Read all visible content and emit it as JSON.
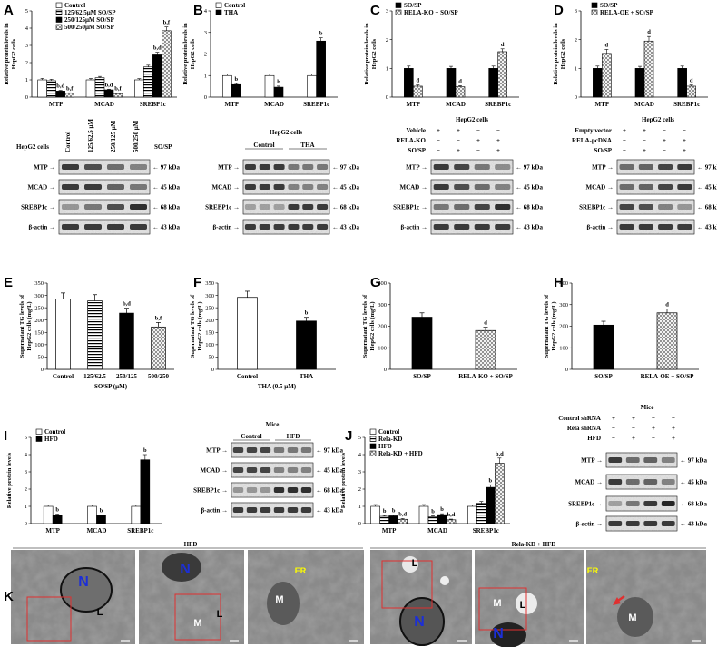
{
  "panel_letters": [
    "A",
    "B",
    "C",
    "D",
    "E",
    "F",
    "G",
    "H",
    "I",
    "J",
    "K"
  ],
  "blot_kda": {
    "mtp": "97 kDa",
    "mcad": "45 kDa",
    "srebp": "68 kDa",
    "actin": "43 kDa"
  },
  "blot_proteins": {
    "mtp": "MTP",
    "mcad": "MCAD",
    "srebp": "SREBP1c",
    "actin": "β-actin"
  },
  "blots": {
    "A": {
      "side": "HepG2 cells",
      "lanes": [
        "Control",
        "125/62.5 μM",
        "250/125 μM",
        "500/250 μM"
      ],
      "tag": "SO/SP"
    },
    "B": {
      "header": "HepG2 cells",
      "groups": [
        "Control",
        "THA"
      ]
    },
    "C": {
      "header": "HepG2 cells",
      "rows": [
        {
          "label": "Vehicle",
          "marks": [
            "+",
            "+",
            "−",
            "−"
          ]
        },
        {
          "label": "RELA-KO",
          "marks": [
            "−",
            "−",
            "+",
            "+"
          ]
        },
        {
          "label": "SO/SP",
          "marks": [
            "−",
            "+",
            "−",
            "+"
          ]
        }
      ]
    },
    "D": {
      "header": "HepG2 cells",
      "rows": [
        {
          "label": "Empty vector",
          "marks": [
            "+",
            "+",
            "−",
            "−"
          ]
        },
        {
          "label": "RELA-pcDNA",
          "marks": [
            "−",
            "−",
            "+",
            "+"
          ]
        },
        {
          "label": "SO/SP",
          "marks": [
            "−",
            "+",
            "−",
            "+"
          ]
        }
      ]
    },
    "I": {
      "header": "Mice",
      "groups": [
        "Control",
        "HFD"
      ]
    },
    "J": {
      "header": "Mice",
      "rows": [
        {
          "label": "Control shRNA",
          "marks": [
            "+",
            "+",
            "−",
            "−"
          ]
        },
        {
          "label": "Rela shRNA",
          "marks": [
            "−",
            "−",
            "+",
            "+"
          ]
        },
        {
          "label": "HFD",
          "marks": [
            "−",
            "+",
            "−",
            "+"
          ]
        }
      ]
    }
  },
  "em": {
    "group_hfd": "HFD",
    "group_rela": "Rela-KD + HFD",
    "labels": [
      "N",
      "L",
      "N",
      "M",
      "L",
      "M",
      "ER",
      "L",
      "N",
      "M",
      "L",
      "N",
      "ER",
      "M"
    ]
  },
  "chart_data": [
    {
      "panel": "A",
      "type": "bar",
      "categories": [
        "MTP",
        "MCAD",
        "SREBP1c"
      ],
      "ylabel": "Relative protein levels in HepG2 cells",
      "ylim": [
        0,
        5
      ],
      "yticks": [
        0,
        1,
        2,
        3,
        4,
        5
      ],
      "series": [
        {
          "name": "Control",
          "values": [
            1.0,
            1.0,
            1.0
          ],
          "err": [
            0.08,
            0.08,
            0.07
          ],
          "sig": [
            "",
            "",
            ""
          ],
          "pattern": "white"
        },
        {
          "name": "125/62.5μM SO/SP",
          "values": [
            0.95,
            1.12,
            1.75
          ],
          "err": [
            0.08,
            0.08,
            0.1
          ],
          "sig": [
            "",
            "",
            ""
          ],
          "pattern": "hstripe"
        },
        {
          "name": "250/125μM SO/SP",
          "values": [
            0.35,
            0.42,
            2.45
          ],
          "err": [
            0.04,
            0.04,
            0.15
          ],
          "sig": [
            "b,d",
            "b,d",
            "b,d"
          ],
          "pattern": "black"
        },
        {
          "name": "500/250μM SO/SP",
          "values": [
            0.22,
            0.2,
            3.85
          ],
          "err": [
            0.03,
            0.03,
            0.22
          ],
          "sig": [
            "b,f",
            "b,f",
            "b,f"
          ],
          "pattern": "cross"
        }
      ]
    },
    {
      "panel": "B",
      "type": "bar",
      "categories": [
        "MTP",
        "MCAD",
        "SREBP1c"
      ],
      "ylabel": "Relative protein levels in HepG2 cells",
      "ylim": [
        0,
        4
      ],
      "yticks": [
        0,
        1,
        2,
        3,
        4
      ],
      "series": [
        {
          "name": "Control",
          "values": [
            1.0,
            1.0,
            1.0
          ],
          "err": [
            0.08,
            0.08,
            0.08
          ],
          "sig": [
            "",
            "",
            ""
          ],
          "pattern": "white"
        },
        {
          "name": "THA",
          "values": [
            0.58,
            0.46,
            2.6
          ],
          "err": [
            0.05,
            0.05,
            0.15
          ],
          "sig": [
            "b",
            "b",
            "b"
          ],
          "pattern": "black"
        }
      ]
    },
    {
      "panel": "C",
      "type": "bar",
      "categories": [
        "MTP",
        "MCAD",
        "SREBP1c"
      ],
      "ylabel": "Relative protein levels in HepG2 cells",
      "ylim": [
        0,
        3
      ],
      "yticks": [
        0,
        1,
        2,
        3
      ],
      "series": [
        {
          "name": "SO/SP",
          "values": [
            1.0,
            1.0,
            1.0
          ],
          "err": [
            0.08,
            0.07,
            0.08
          ],
          "sig": [
            "",
            "",
            ""
          ],
          "pattern": "black"
        },
        {
          "name": "RELA-KO + SO/SP",
          "values": [
            0.38,
            0.36,
            1.58
          ],
          "err": [
            0.04,
            0.04,
            0.1
          ],
          "sig": [
            "d",
            "d",
            "d"
          ],
          "pattern": "cross"
        }
      ]
    },
    {
      "panel": "D",
      "type": "bar",
      "categories": [
        "MTP",
        "MCAD",
        "SREBP1c"
      ],
      "ylabel": "Relative protein levels in HepG2 cells",
      "ylim": [
        0,
        3
      ],
      "yticks": [
        0,
        1,
        2,
        3
      ],
      "series": [
        {
          "name": "SO/SP",
          "values": [
            1.0,
            1.0,
            1.0
          ],
          "err": [
            0.08,
            0.07,
            0.08
          ],
          "sig": [
            "",
            "",
            ""
          ],
          "pattern": "black"
        },
        {
          "name": "RELA-OE + SO/SP",
          "values": [
            1.52,
            1.95,
            0.38
          ],
          "err": [
            0.14,
            0.16,
            0.04
          ],
          "sig": [
            "d",
            "d",
            "d"
          ],
          "pattern": "cross"
        }
      ]
    },
    {
      "panel": "E",
      "type": "bar",
      "categories": [
        "Control",
        "125/62.5",
        "250/125",
        "500/250"
      ],
      "xlabel": "SO/SP (μM)",
      "ylabel": "Supernatant TG levels of HepG2 cells (mg/L)",
      "ylim": [
        0,
        350
      ],
      "yticks": [
        0,
        50,
        100,
        150,
        200,
        250,
        300,
        350
      ],
      "series": [
        {
          "name": "",
          "values": [
            285,
            278,
            228,
            172
          ],
          "err": [
            25,
            25,
            20,
            18
          ],
          "sig": [
            "",
            "",
            "b,d",
            "b,f"
          ],
          "patterns": [
            "white",
            "hstripe",
            "black",
            "cross"
          ]
        }
      ]
    },
    {
      "panel": "F",
      "type": "bar",
      "categories": [
        "Control",
        "THA"
      ],
      "xlabel": "THA (0.5 μM)",
      "ylabel": "Supernatant TG levels of HepG2 cells (mg/L)",
      "ylim": [
        0,
        350
      ],
      "yticks": [
        0,
        50,
        100,
        150,
        200,
        250,
        300,
        350
      ],
      "series": [
        {
          "name": "",
          "values": [
            292,
            196
          ],
          "err": [
            25,
            15
          ],
          "sig": [
            "",
            "b"
          ],
          "patterns": [
            "white",
            "black"
          ]
        }
      ]
    },
    {
      "panel": "G",
      "type": "bar",
      "categories": [
        "SO/SP",
        "RELA-KO + SO/SP"
      ],
      "ylabel": "Supernatant TG levels of HepG2 cells (mg/L)",
      "ylim": [
        0,
        400
      ],
      "yticks": [
        0,
        100,
        200,
        300,
        400
      ],
      "series": [
        {
          "name": "",
          "values": [
            242,
            180
          ],
          "err": [
            20,
            15
          ],
          "sig": [
            "",
            "d"
          ],
          "patterns": [
            "black",
            "cross"
          ]
        }
      ]
    },
    {
      "panel": "H",
      "type": "bar",
      "categories": [
        "SO/SP",
        "RELA-OE + SO/SP"
      ],
      "ylabel": "Supernatant TG levels of HepG2 cells (mg/L)",
      "ylim": [
        0,
        400
      ],
      "yticks": [
        0,
        100,
        200,
        300,
        400
      ],
      "series": [
        {
          "name": "",
          "values": [
            205,
            262
          ],
          "err": [
            18,
            18
          ],
          "sig": [
            "",
            "d"
          ],
          "patterns": [
            "black",
            "cross"
          ]
        }
      ]
    },
    {
      "panel": "I",
      "type": "bar",
      "categories": [
        "MTP",
        "MCAD",
        "SREBP1c"
      ],
      "ylabel": "Relative protein levels",
      "ylim": [
        0,
        5
      ],
      "yticks": [
        0,
        1,
        2,
        3,
        4,
        5
      ],
      "series": [
        {
          "name": "Control",
          "values": [
            1.0,
            1.0,
            1.0
          ],
          "err": [
            0.09,
            0.08,
            0.08
          ],
          "sig": [
            "",
            "",
            ""
          ],
          "pattern": "white"
        },
        {
          "name": "HFD",
          "values": [
            0.5,
            0.47,
            3.7
          ],
          "err": [
            0.05,
            0.04,
            0.3
          ],
          "sig": [
            "b",
            "b",
            "b"
          ],
          "pattern": "black"
        }
      ]
    },
    {
      "panel": "J",
      "type": "bar",
      "categories": [
        "MTP",
        "MCAD",
        "SREBP1c"
      ],
      "ylabel": "Relative protein levels",
      "ylim": [
        0,
        5
      ],
      "yticks": [
        0,
        1,
        2,
        3,
        4,
        5
      ],
      "series": [
        {
          "name": "Control",
          "values": [
            1.0,
            1.0,
            1.0
          ],
          "err": [
            0.1,
            0.1,
            0.07
          ],
          "sig": [
            "",
            "",
            ""
          ],
          "pattern": "white"
        },
        {
          "name": "Rela-KD",
          "values": [
            0.42,
            0.4,
            1.18
          ],
          "err": [
            0.05,
            0.05,
            0.1
          ],
          "sig": [
            "b",
            "b",
            ""
          ],
          "pattern": "hstripe"
        },
        {
          "name": "HFD",
          "values": [
            0.45,
            0.52,
            2.1
          ],
          "err": [
            0.05,
            0.05,
            0.15
          ],
          "sig": [
            "b",
            "b",
            "b"
          ],
          "pattern": "black"
        },
        {
          "name": "Rela-KD + HFD",
          "values": [
            0.25,
            0.22,
            3.5
          ],
          "err": [
            0.04,
            0.04,
            0.3
          ],
          "sig": [
            "b,d",
            "b,d",
            "b,d"
          ],
          "pattern": "cross"
        }
      ]
    }
  ]
}
